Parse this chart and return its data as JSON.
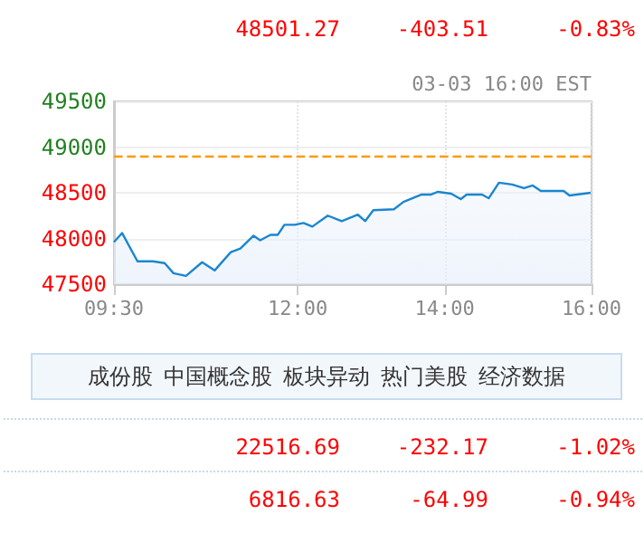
{
  "chart_data": {
    "type": "area",
    "subtitle": "03-03 16:00 EST",
    "x": [
      9.5,
      9.61,
      9.82,
      10.03,
      10.19,
      10.31,
      10.48,
      10.7,
      10.87,
      11.09,
      11.22,
      11.4,
      11.49,
      11.63,
      11.73,
      11.82,
      11.96,
      12.08,
      12.2,
      12.41,
      12.6,
      12.82,
      12.92,
      13.03,
      13.31,
      13.44,
      13.68,
      13.81,
      13.91,
      14.09,
      14.22,
      14.3,
      14.51,
      14.6,
      14.74,
      14.92,
      15.08,
      15.2,
      15.31,
      15.62,
      15.7,
      15.99
    ],
    "series": [
      {
        "color": "#1a86d0",
        "values": [
          47960,
          48060,
          47750,
          47750,
          47730,
          47620,
          47590,
          47740,
          47650,
          47850,
          47890,
          48030,
          47980,
          48040,
          48040,
          48150,
          48150,
          48170,
          48130,
          48250,
          48190,
          48260,
          48190,
          48310,
          48320,
          48400,
          48480,
          48480,
          48510,
          48490,
          48430,
          48480,
          48480,
          48440,
          48610,
          48590,
          48550,
          48580,
          48520,
          48520,
          48470,
          48500
        ]
      }
    ],
    "xlim": [
      9.5,
      16
    ],
    "xticks": [
      {
        "value": 9.5,
        "label": "09:30"
      },
      {
        "value": 12,
        "label": "12:00"
      },
      {
        "value": 14,
        "label": "14:00"
      },
      {
        "value": 16,
        "label": "16:00"
      }
    ],
    "ylim": [
      47500,
      49500
    ],
    "yticks": [
      47500,
      48000,
      48500,
      49000,
      49500
    ],
    "ref_lines": [
      {
        "axis": "y",
        "value": 48905,
        "color": "#ff9900",
        "line_style": "dashed"
      }
    ],
    "grid": true,
    "marker": "none",
    "line_style": "solid",
    "annotations": [
      "48501.27",
      "-403.51",
      "-0.83%",
      "成份股",
      "中国概念股",
      "板块异动",
      "热门美股",
      "经济数据",
      "22516.69",
      "-232.17",
      "-1.02%",
      "6816.63",
      "-64.99",
      "-0.94%"
    ]
  }
}
